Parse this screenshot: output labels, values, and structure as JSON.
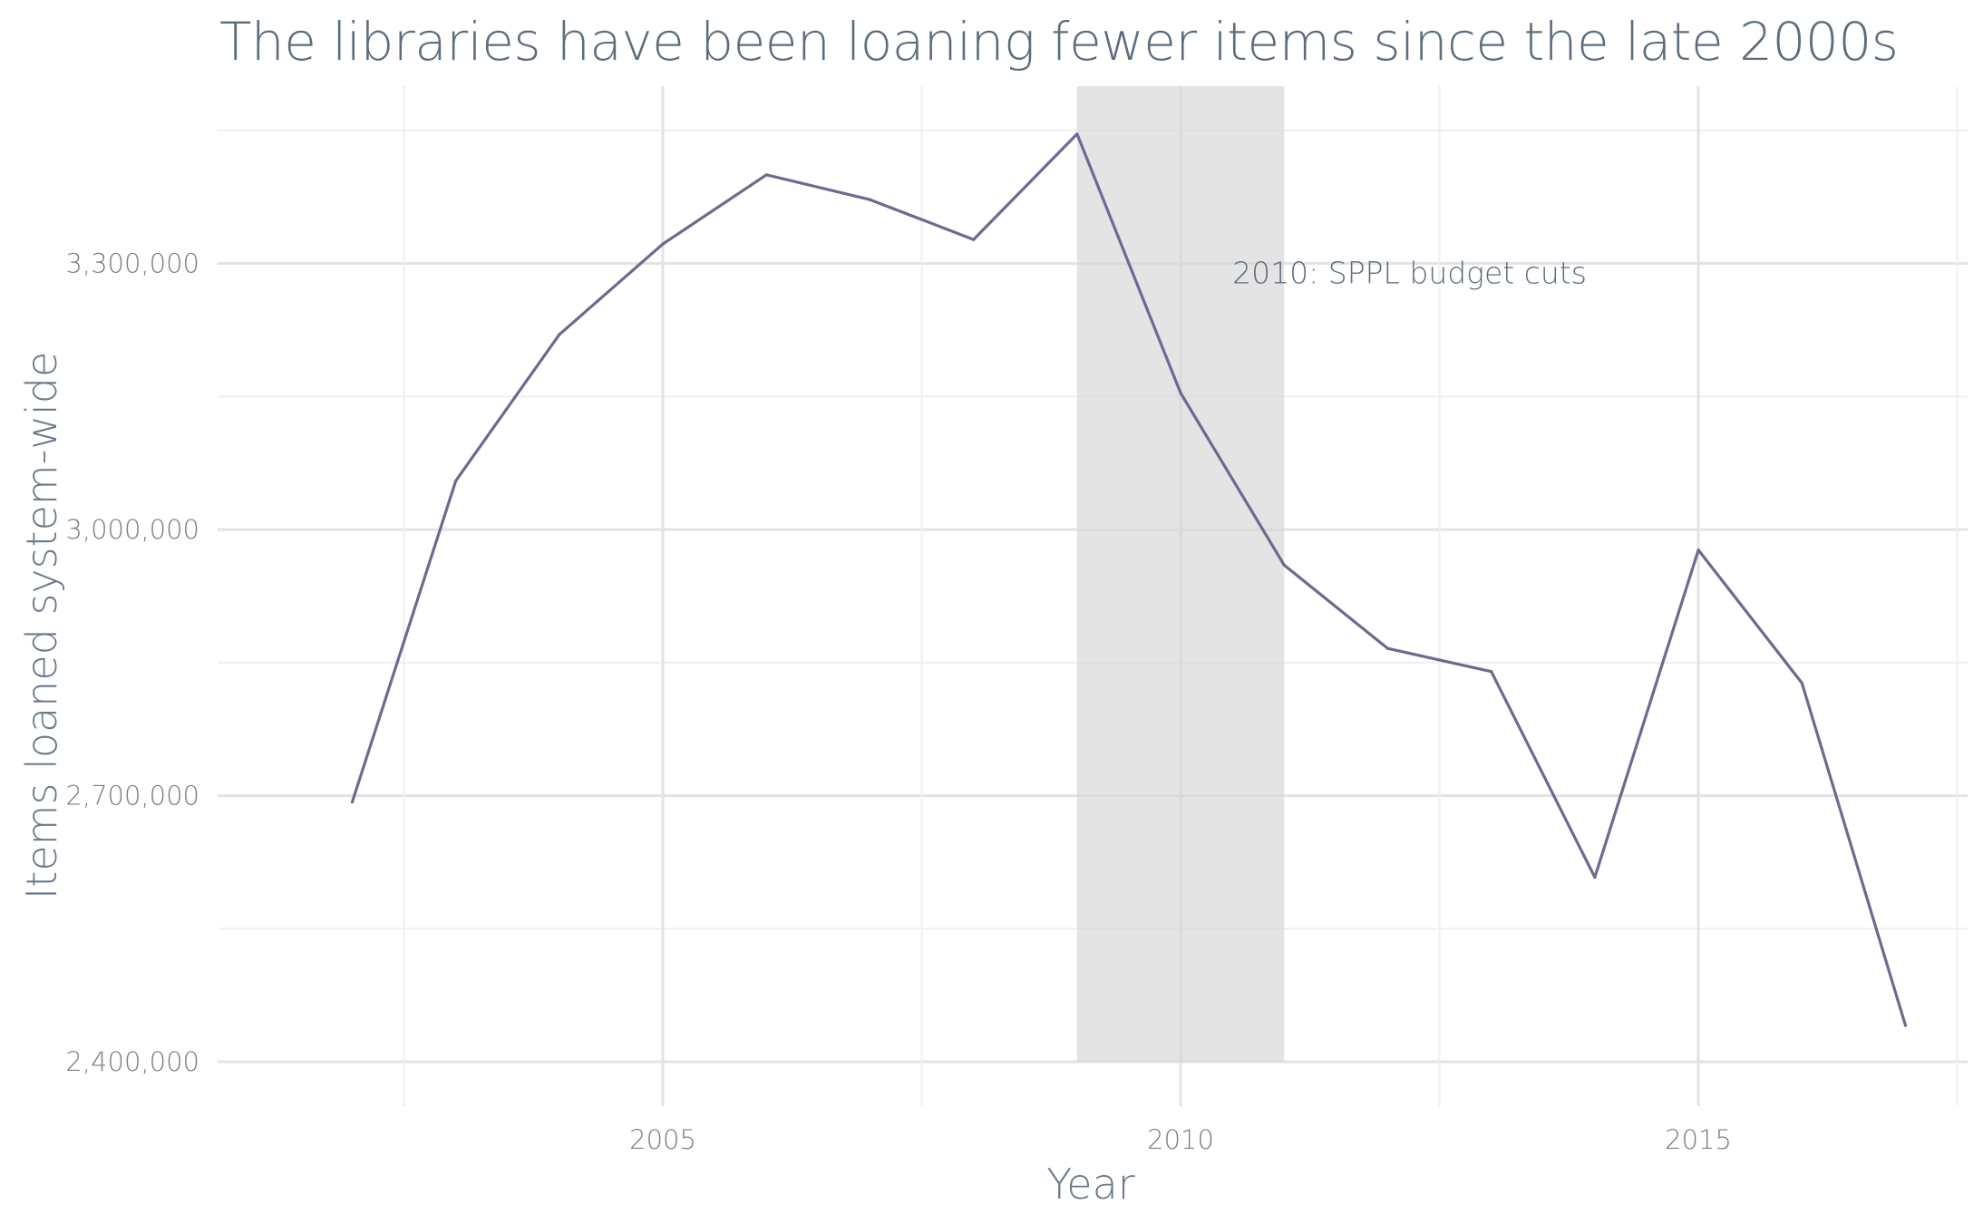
{
  "chart_data": {
    "type": "line",
    "title": "The libraries have been loaning fewer items since the late 2000s",
    "xlabel": "Year",
    "ylabel": "Items loaned system-wide",
    "x": [
      2002,
      2003,
      2004,
      2005,
      2006,
      2007,
      2008,
      2009,
      2010,
      2011,
      2012,
      2013,
      2014,
      2015,
      2016,
      2017
    ],
    "series": [
      {
        "values": [
          2693000,
          3055000,
          3220000,
          3322000,
          3400000,
          3372000,
          3327000,
          3446000,
          3154000,
          2960000,
          2866000,
          2840000,
          2608000,
          2977000,
          2827000,
          2441000
        ]
      }
    ],
    "xlim": [
      2000.7,
      2017.6
    ],
    "ylim": [
      2350000,
      3500000
    ],
    "x_ticks": [
      2005,
      2010,
      2015
    ],
    "x_tick_labels": [
      "2005",
      "2010",
      "2015"
    ],
    "y_ticks": [
      2400000,
      2700000,
      3000000,
      3300000
    ],
    "y_tick_labels": [
      "2,400,000",
      "2,700,000",
      "3,000,000",
      "3,300,000"
    ],
    "highlight_band": {
      "x_start": 2009,
      "x_end": 2011,
      "y_start": 2400000,
      "y_end": 3500000
    },
    "annotation": {
      "text": "2010: SPPL budget cuts",
      "x": 2010.5,
      "y": 3290000
    },
    "grid": true,
    "legend": "none",
    "colors": {
      "line": "#6b6b8f",
      "band": "#d6d6d6",
      "title": "#5d6d7e",
      "tick": "#7c7c84"
    }
  }
}
